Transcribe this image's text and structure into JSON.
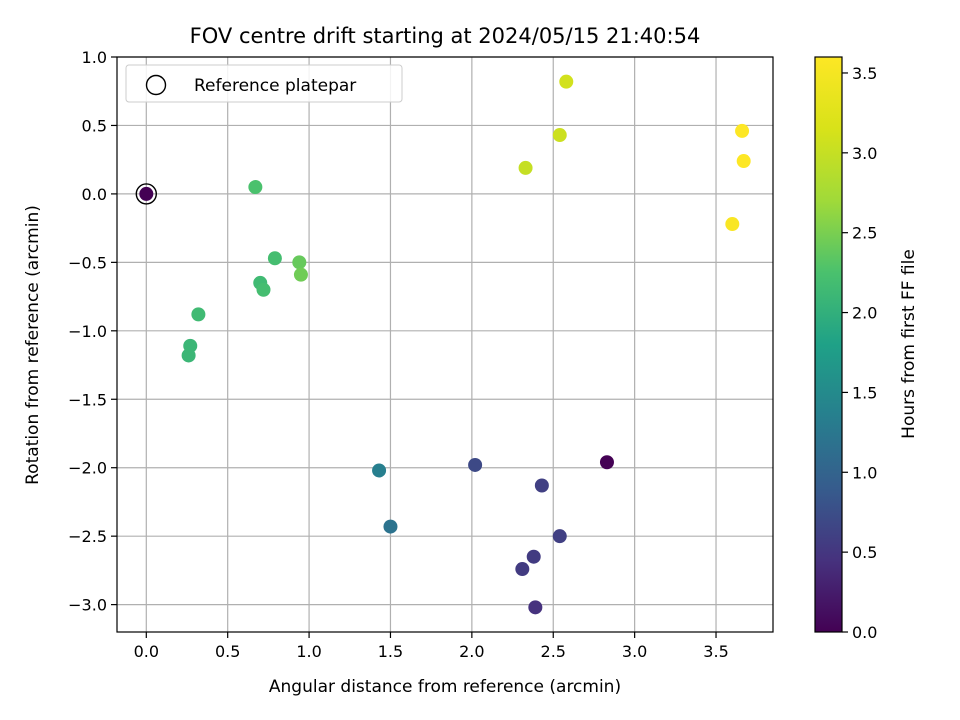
{
  "chart_data": {
    "type": "scatter",
    "title": "FOV centre drift starting at 2024/05/15 21:40:54",
    "xlabel": "Angular distance from reference (arcmin)",
    "ylabel": "Rotation from reference (arcmin)",
    "xlim": [
      -0.18,
      3.85
    ],
    "ylim": [
      -3.2,
      1.0
    ],
    "xticks": [
      0.0,
      0.5,
      1.0,
      1.5,
      2.0,
      2.5,
      3.0,
      3.5
    ],
    "xtick_labels": [
      "0.0",
      "0.5",
      "1.0",
      "1.5",
      "2.0",
      "2.5",
      "3.0",
      "3.5"
    ],
    "yticks": [
      1.0,
      0.5,
      0.0,
      -0.5,
      -1.0,
      -1.5,
      -2.0,
      -2.5,
      -3.0
    ],
    "ytick_labels": [
      "1.0",
      "0.5",
      "0.0",
      "−0.5",
      "−1.0",
      "−1.5",
      "−2.0",
      "−2.5",
      "−3.0"
    ],
    "grid": true,
    "colormap": "viridis",
    "colorbar": {
      "label": "Hours from first FF file",
      "range": [
        0.0,
        3.6
      ],
      "ticks": [
        0.0,
        0.5,
        1.0,
        1.5,
        2.0,
        2.5,
        3.0,
        3.5
      ],
      "tick_labels": [
        "0.0",
        "0.5",
        "1.0",
        "1.5",
        "2.0",
        "2.5",
        "3.0",
        "3.5"
      ]
    },
    "legend": {
      "label": "Reference platepar",
      "placement": "top-left"
    },
    "reference_point": {
      "x": 0.0,
      "y": 0.0
    },
    "points": [
      {
        "x": 0.0,
        "y": 0.0,
        "c": 0.0
      },
      {
        "x": 2.83,
        "y": -1.96,
        "c": 0.0
      },
      {
        "x": 2.39,
        "y": -3.02,
        "c": 0.45
      },
      {
        "x": 2.31,
        "y": -2.74,
        "c": 0.55
      },
      {
        "x": 2.38,
        "y": -2.65,
        "c": 0.55
      },
      {
        "x": 2.54,
        "y": -2.5,
        "c": 0.6
      },
      {
        "x": 2.43,
        "y": -2.13,
        "c": 0.6
      },
      {
        "x": 2.02,
        "y": -1.98,
        "c": 0.7
      },
      {
        "x": 1.5,
        "y": -2.43,
        "c": 1.2
      },
      {
        "x": 1.43,
        "y": -2.02,
        "c": 1.35
      },
      {
        "x": 0.26,
        "y": -1.18,
        "c": 2.1
      },
      {
        "x": 0.27,
        "y": -1.11,
        "c": 2.1
      },
      {
        "x": 0.32,
        "y": -0.88,
        "c": 2.15
      },
      {
        "x": 0.7,
        "y": -0.65,
        "c": 2.15
      },
      {
        "x": 0.72,
        "y": -0.7,
        "c": 2.2
      },
      {
        "x": 0.79,
        "y": -0.47,
        "c": 2.2
      },
      {
        "x": 0.67,
        "y": 0.05,
        "c": 2.25
      },
      {
        "x": 0.94,
        "y": -0.5,
        "c": 2.4
      },
      {
        "x": 0.95,
        "y": -0.59,
        "c": 2.45
      },
      {
        "x": 2.33,
        "y": 0.19,
        "c": 3.0
      },
      {
        "x": 2.54,
        "y": 0.43,
        "c": 3.05
      },
      {
        "x": 2.58,
        "y": 0.82,
        "c": 3.1
      },
      {
        "x": 3.6,
        "y": -0.22,
        "c": 3.55
      },
      {
        "x": 3.66,
        "y": 0.46,
        "c": 3.6
      },
      {
        "x": 3.67,
        "y": 0.24,
        "c": 3.6
      }
    ]
  }
}
